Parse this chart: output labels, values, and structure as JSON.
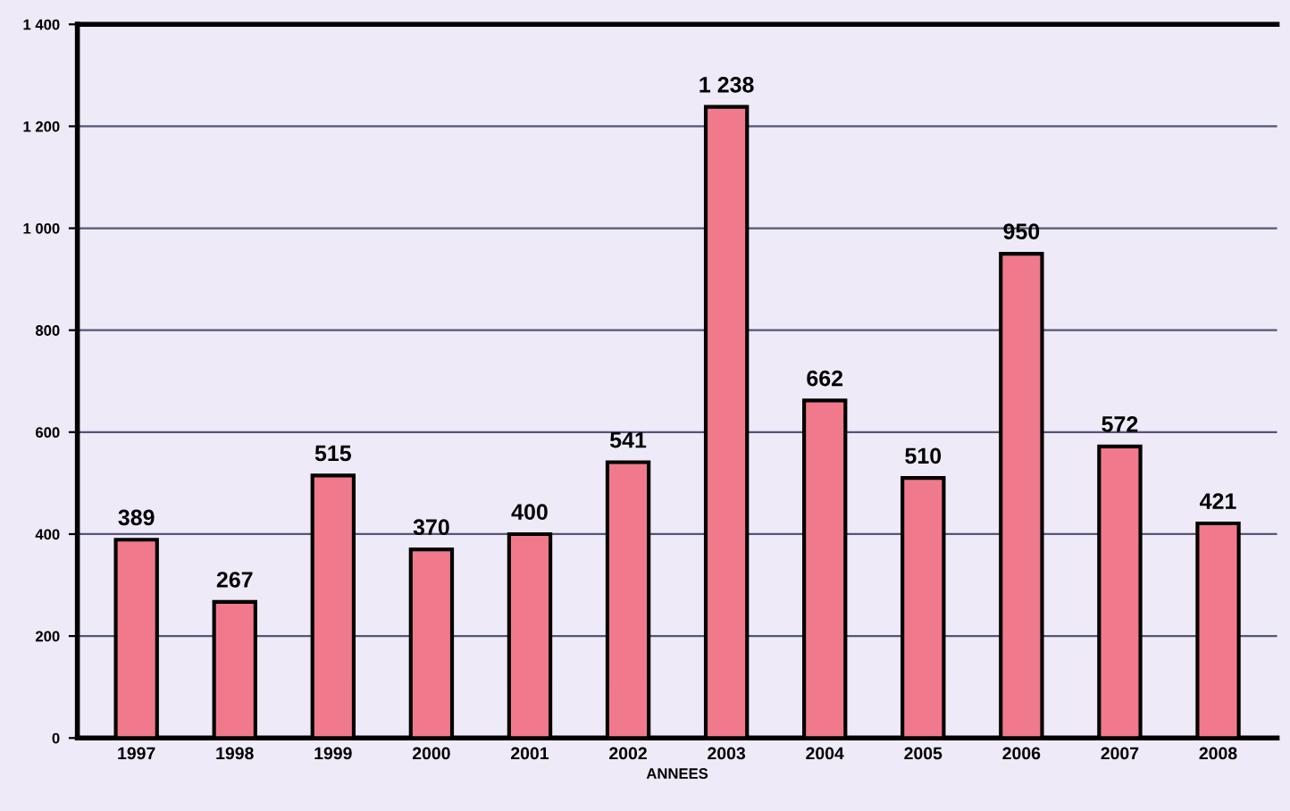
{
  "chart_data": {
    "type": "bar",
    "xlabel": "ANNEES",
    "categories": [
      "1997",
      "1998",
      "1999",
      "2000",
      "2001",
      "2002",
      "2003",
      "2004",
      "2005",
      "2006",
      "2007",
      "2008"
    ],
    "values": [
      389,
      267,
      515,
      370,
      400,
      541,
      1238,
      662,
      510,
      950,
      572,
      421
    ],
    "value_labels": [
      "389",
      "267",
      "515",
      "370",
      "400",
      "541",
      "1 238",
      "662",
      "510",
      "950",
      "572",
      "421"
    ],
    "color": "#f07a8c",
    "ylim": [
      0,
      1400
    ],
    "yticks": [
      0,
      200,
      400,
      600,
      800,
      {
        "value": 1000,
        "label": "1 000"
      },
      {
        "value": 1200,
        "label": "1 200"
      },
      {
        "value": 1400,
        "label": "1 400"
      }
    ],
    "grid": "y"
  }
}
